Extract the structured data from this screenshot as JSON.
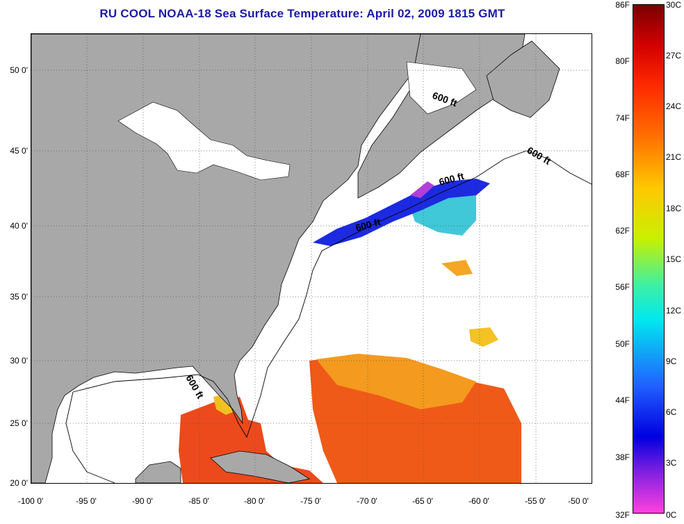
{
  "title": "RU COOL  NOAA-18  Sea Surface Temperature:  April 02, 2009 1815 GMT",
  "map": {
    "lat_labels": [
      "50 0'",
      "45 0'",
      "40 0'",
      "35 0'",
      "30 0'",
      "25 0'",
      "20 0'"
    ],
    "lon_labels": [
      "-100 0'",
      "-95 0'",
      "-90 0'",
      "-85 0'",
      "-80 0'",
      "-75 0'",
      "-70 0'",
      "-65 0'",
      "-60 0'",
      "-55 0'",
      "-50 0'"
    ],
    "contour_labels": [
      "600 ft",
      "600 ft",
      "600 ft",
      "600 ft",
      "600 ft"
    ],
    "colors": {
      "land": "#a8a8a8",
      "cloud": "#ffffff",
      "warm_sst": "#f04a18",
      "mid_sst": "#f4a020",
      "cold_sst": "#1a30e0",
      "cool_sst": "#40d0e0",
      "frigid_sst": "#c040e0"
    }
  },
  "colorbar": {
    "fahrenheit": [
      "86F",
      "80F",
      "74F",
      "68F",
      "62F",
      "56F",
      "50F",
      "44F",
      "38F",
      "32F"
    ],
    "celsius": [
      "30C",
      "27C",
      "24C",
      "21C",
      "18C",
      "15C",
      "12C",
      "9C",
      "6C",
      "3C",
      "0C"
    ]
  }
}
